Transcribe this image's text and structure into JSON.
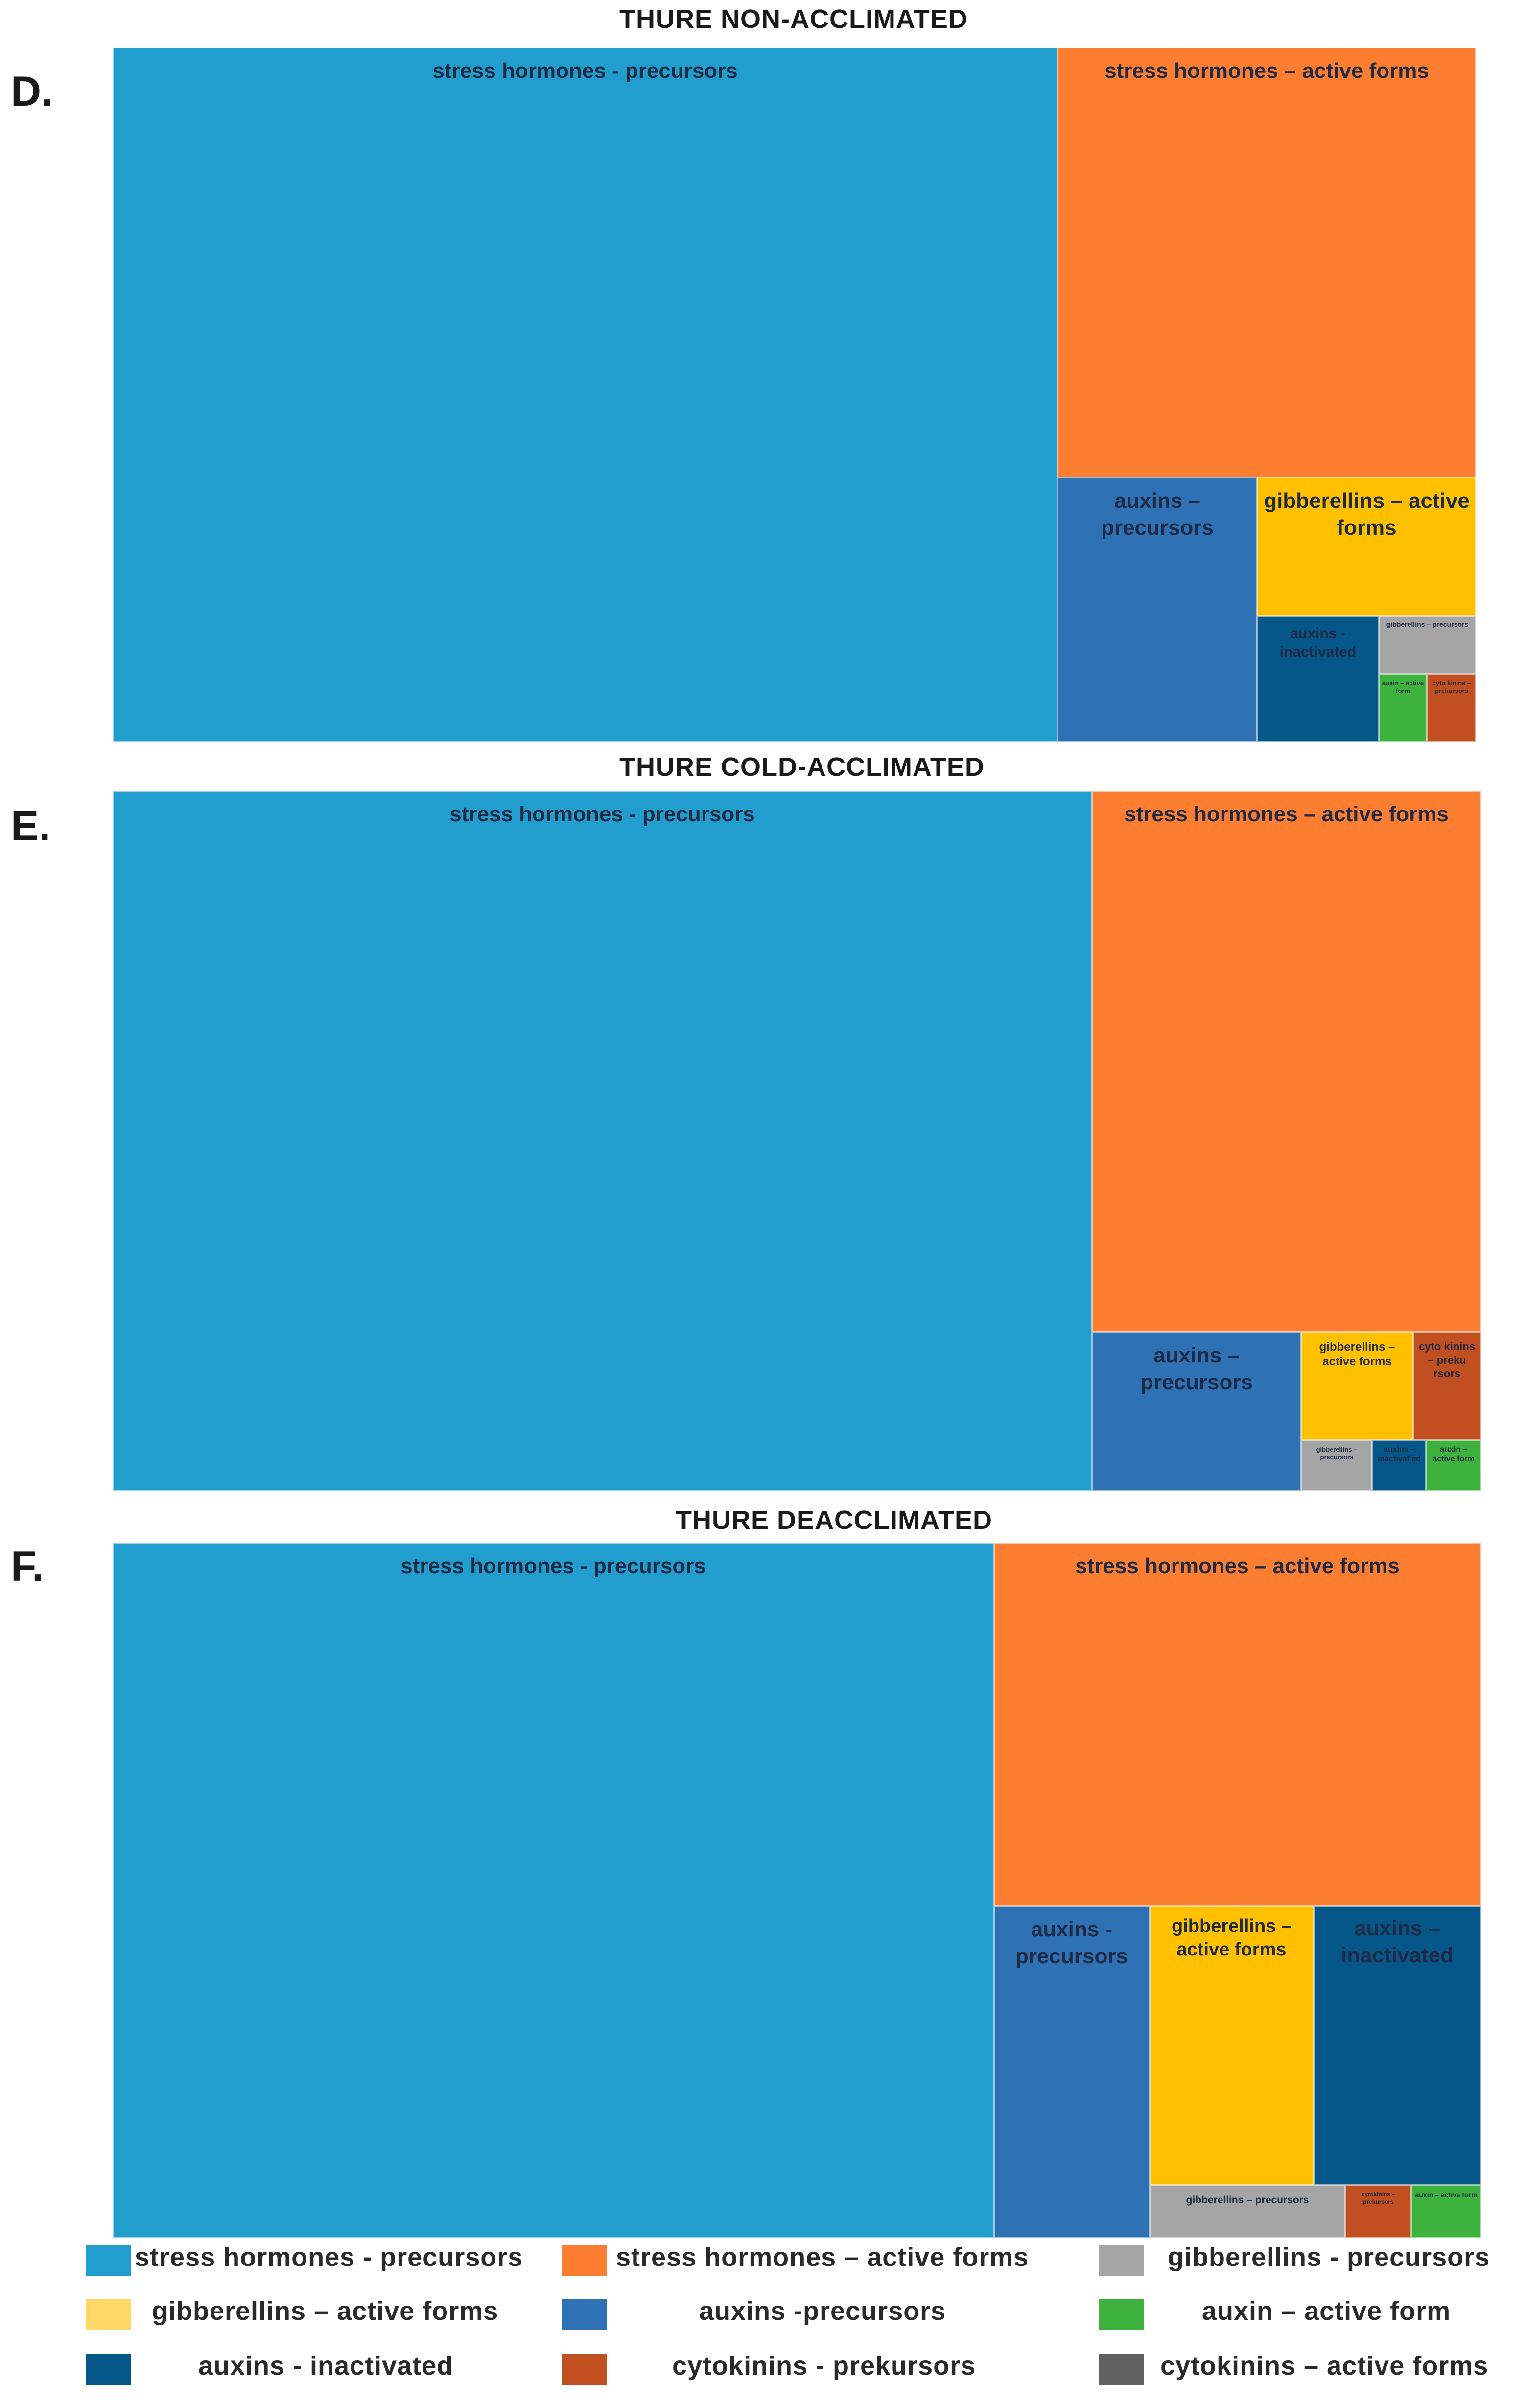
{
  "panels": [
    {
      "letter": "D.",
      "title": "THURE NON-ACCLIMATED"
    },
    {
      "letter": "E.",
      "title": "THURE COLD-ACCLIMATED"
    },
    {
      "letter": "F.",
      "title": "THURE DEACCLIMATED"
    }
  ],
  "legend": [
    {
      "label": "stress hormones - precursors",
      "color": "#219ecd"
    },
    {
      "label": "stress hormones – active forms",
      "color": "#fd7e31"
    },
    {
      "label": "gibberellins - precursors",
      "color": "#a5a5a5"
    },
    {
      "label": "gibberellins – active forms",
      "color": "#ffd866"
    },
    {
      "label": "auxins -precursors",
      "color": "#2e72b5"
    },
    {
      "label": "auxin – active form",
      "color": "#3db33e"
    },
    {
      "label": "auxins - inactivated",
      "color": "#05578a"
    },
    {
      "label": "cytokinins - prekursors",
      "color": "#c24f1f"
    },
    {
      "label": "cytokinins – active forms",
      "color": "#606060"
    }
  ],
  "chart_data": [
    {
      "type": "treemap",
      "title": "THURE NON-ACCLIMATED",
      "panel": "D.",
      "items": [
        {
          "label": "stress hormones - precursors",
          "color": "#219ecd"
        },
        {
          "label": "stress hormones – active forms",
          "color": "#fd7e31"
        },
        {
          "label": "auxins – precursors",
          "color": "#2e72b5"
        },
        {
          "label": "gibberellins – active forms",
          "color": "#ffc000"
        },
        {
          "label": "auxins - inactivated",
          "color": "#05578a"
        },
        {
          "label": "gibberellins – precursors",
          "color": "#a5a5a5"
        },
        {
          "label": "auxin – active form",
          "color": "#3db33e"
        },
        {
          "label": "cyto kinins – prekursors",
          "color": "#c24f1f"
        }
      ]
    },
    {
      "type": "treemap",
      "title": "THURE COLD-ACCLIMATED",
      "panel": "E.",
      "items": [
        {
          "label": "stress hormones - precursors",
          "color": "#219ecd"
        },
        {
          "label": "stress hormones – active forms",
          "color": "#fd7e31"
        },
        {
          "label": "auxins – precursors",
          "color": "#2e72b5"
        },
        {
          "label": "gibberellins – active forms",
          "color": "#ffc000"
        },
        {
          "label": "cyto kinins – preku rsors",
          "color": "#c24f1f"
        },
        {
          "label": "gibberellins – precursors",
          "color": "#a5a5a5"
        },
        {
          "label": "auxins – inactivat ed",
          "color": "#05578a"
        },
        {
          "label": "auxin – active form",
          "color": "#3db33e"
        }
      ]
    },
    {
      "type": "treemap",
      "title": "THURE DEACCLIMATED",
      "panel": "F.",
      "items": [
        {
          "label": "stress hormones - precursors",
          "color": "#219ecd"
        },
        {
          "label": "stress hormones – active forms",
          "color": "#fd7e31"
        },
        {
          "label": "auxins - precursors",
          "color": "#2e72b5"
        },
        {
          "label": "gibberellins – active forms",
          "color": "#ffc000"
        },
        {
          "label": "auxins – inactivated",
          "color": "#05578a"
        },
        {
          "label": "gibberellins – precursors",
          "color": "#a5a5a5"
        },
        {
          "label": "cytokinins – prekursors",
          "color": "#c24f1f"
        },
        {
          "label": "auxin – active form",
          "color": "#3db33e"
        }
      ]
    }
  ]
}
